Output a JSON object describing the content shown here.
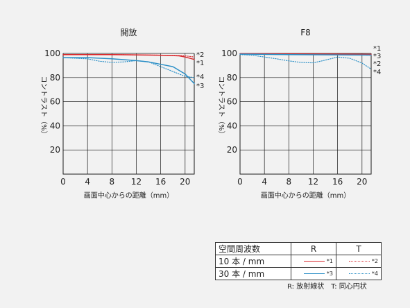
{
  "chart_data": [
    {
      "type": "line",
      "title": "開放",
      "xlabel": "画面中心からの距離（mm）",
      "ylabel": "コントラスト（%）",
      "xlim": [
        0,
        21.5
      ],
      "ylim": [
        0,
        100
      ],
      "xticks": [
        0,
        4,
        8,
        12,
        16,
        20
      ],
      "yticks": [
        20,
        40,
        60,
        80,
        100
      ],
      "grid": true,
      "series": [
        {
          "name": "*1",
          "color": "#d9262b",
          "dash": "solid",
          "x": [
            0,
            4,
            8,
            12,
            16,
            19,
            20,
            21.5
          ],
          "y": [
            99,
            99,
            99,
            98.8,
            98.5,
            98,
            97,
            95
          ]
        },
        {
          "name": "*2",
          "color": "#d9262b",
          "dash": "dotted",
          "x": [
            0,
            4,
            8,
            12,
            16,
            19,
            20,
            21.5
          ],
          "y": [
            99,
            99,
            99,
            98.8,
            98.5,
            98.3,
            98,
            97
          ]
        },
        {
          "name": "*3",
          "color": "#2a8fc7",
          "dash": "solid",
          "x": [
            0,
            4,
            8,
            12,
            14,
            16,
            18,
            20,
            21.5
          ],
          "y": [
            96.5,
            96.5,
            95.5,
            94,
            93,
            91,
            89,
            83,
            75
          ]
        },
        {
          "name": "*4",
          "color": "#2a8fc7",
          "dash": "dotted",
          "x": [
            0,
            4,
            6,
            8,
            10,
            12,
            14,
            16,
            18,
            20,
            21.5
          ],
          "y": [
            96.5,
            95.5,
            93.5,
            92.5,
            93,
            94,
            93,
            89,
            85,
            81,
            80
          ]
        }
      ],
      "annotations": [
        "*2",
        "*1",
        "*4",
        "*3"
      ]
    },
    {
      "type": "line",
      "title": "F8",
      "xlabel": "画面中心からの距離（mm）",
      "ylabel": "コントラスト（%）",
      "xlim": [
        0,
        21.5
      ],
      "ylim": [
        0,
        100
      ],
      "xticks": [
        0,
        4,
        8,
        12,
        16,
        20
      ],
      "yticks": [
        20,
        40,
        60,
        80,
        100
      ],
      "grid": true,
      "series": [
        {
          "name": "*1",
          "color": "#d9262b",
          "dash": "solid",
          "x": [
            0,
            8,
            16,
            21.5
          ],
          "y": [
            99.8,
            99.6,
            99.4,
            99.2
          ]
        },
        {
          "name": "*2",
          "color": "#d9262b",
          "dash": "dotted",
          "x": [
            0,
            8,
            16,
            21.5
          ],
          "y": [
            99.6,
            99.3,
            99,
            98.5
          ]
        },
        {
          "name": "*3",
          "color": "#2a8fc7",
          "dash": "solid",
          "x": [
            0,
            8,
            16,
            21.5
          ],
          "y": [
            99.4,
            99,
            98.8,
            98.6
          ]
        },
        {
          "name": "*4",
          "color": "#2a8fc7",
          "dash": "dotted",
          "x": [
            0,
            2,
            4,
            6,
            8,
            10,
            12,
            14,
            16,
            18,
            20,
            21.5
          ],
          "y": [
            99,
            98.5,
            97,
            95.5,
            93.8,
            92.5,
            92.2,
            94.5,
            97,
            96,
            92,
            87
          ]
        }
      ],
      "annotations": [
        "*1",
        "*3",
        "*2",
        "*4"
      ]
    }
  ],
  "legend": {
    "header": [
      "空間周波数",
      "R",
      "T"
    ],
    "rows": [
      {
        "label": "10 本 / mm",
        "r": "*1",
        "t": "*2"
      },
      {
        "label": "30 本 / mm",
        "r": "*3",
        "t": "*4"
      }
    ],
    "colors": {
      "red": "#d9262b",
      "blue": "#2a8fc7"
    }
  },
  "note": "R: 放射線状　T: 同心円状"
}
